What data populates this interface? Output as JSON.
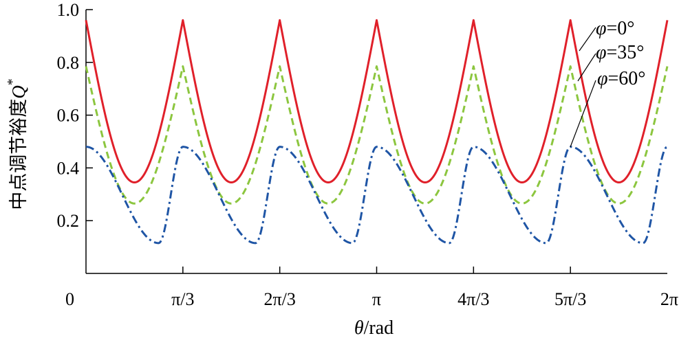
{
  "chart_data": {
    "type": "line",
    "xlabel": "θ/rad",
    "ylabel": "中点调节裕度Q*",
    "ylabel_parts": {
      "base": "中点调节裕度",
      "symbol": "Q",
      "superscript": "*"
    },
    "xlim": [
      0,
      6.2832
    ],
    "ylim": [
      0,
      1.0
    ],
    "x_ticks": [
      {
        "value": 0,
        "label": "0"
      },
      {
        "value": 1.0472,
        "label": "π/3"
      },
      {
        "value": 2.0944,
        "label": "2π/3"
      },
      {
        "value": 3.1416,
        "label": "π"
      },
      {
        "value": 4.1888,
        "label": "4π/3"
      },
      {
        "value": 5.236,
        "label": "5π/3"
      },
      {
        "value": 6.2832,
        "label": "2π"
      }
    ],
    "y_ticks": [
      {
        "value": 0.2,
        "label": "0.2"
      },
      {
        "value": 0.4,
        "label": "0.4"
      },
      {
        "value": 0.6,
        "label": "0.6"
      },
      {
        "value": 0.8,
        "label": "0.8"
      },
      {
        "value": 1.0,
        "label": "1.0"
      }
    ],
    "grid": false,
    "series": [
      {
        "name": "φ=0°",
        "symbol": "φ",
        "value_text": "=0°",
        "color": "#e0202a",
        "dash": "solid",
        "peak": 0.96,
        "trough": 0.345,
        "trough_offset": 0.5236,
        "x": [
          0,
          0.2618,
          0.5236,
          0.7854,
          1.0472
        ],
        "y": [
          0.96,
          0.55,
          0.345,
          0.55,
          0.96
        ]
      },
      {
        "name": "φ=35°",
        "symbol": "φ",
        "value_text": "=35°",
        "color": "#8cc63f",
        "dash": "dashed",
        "peak": 0.785,
        "trough": 0.265,
        "trough_offset": 0.5236,
        "x": [
          0,
          0.2618,
          0.5236,
          0.7854,
          1.0472
        ],
        "y": [
          0.785,
          0.44,
          0.265,
          0.44,
          0.785
        ]
      },
      {
        "name": "φ=60°",
        "symbol": "φ",
        "value_text": "=60°",
        "color": "#1f55a5",
        "dash": "dashdot",
        "peak": 0.48,
        "trough": 0.115,
        "trough_offset": 0.7854,
        "x": [
          0,
          0.2618,
          0.5236,
          0.7854,
          1.0472
        ],
        "y": [
          0.48,
          0.43,
          0.29,
          0.115,
          0.48
        ]
      }
    ],
    "legend_placement": "top-right, labels with leader lines to curves"
  }
}
